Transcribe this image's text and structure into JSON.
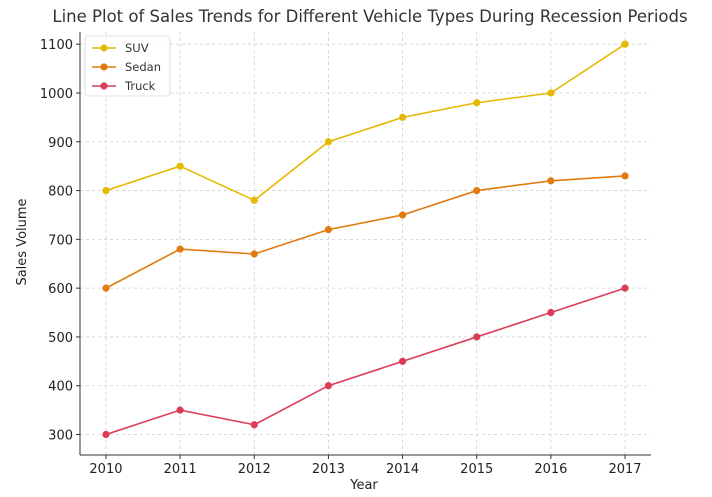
{
  "chart_data": {
    "type": "line",
    "title": "Line Plot of Sales Trends for Different Vehicle Types During Recession Periods",
    "xlabel": "Year",
    "ylabel": "Sales Volume",
    "x": [
      2010,
      2011,
      2012,
      2013,
      2014,
      2015,
      2016,
      2017
    ],
    "ylim": [
      258,
      1125
    ],
    "y_ticks": [
      300,
      400,
      500,
      600,
      700,
      800,
      900,
      1000,
      1100
    ],
    "grid": true,
    "grid_style": "dashed",
    "legend_position": "top-left",
    "series": [
      {
        "name": "SUV",
        "color": "#E6B800",
        "values": [
          800,
          850,
          780,
          900,
          950,
          980,
          1000,
          1100
        ]
      },
      {
        "name": "Sedan",
        "color": "#E07B10",
        "values": [
          600,
          680,
          670,
          720,
          750,
          800,
          820,
          830
        ]
      },
      {
        "name": "Truck",
        "color": "#DC3C5A",
        "values": [
          300,
          350,
          320,
          400,
          450,
          500,
          550,
          600
        ]
      }
    ]
  }
}
